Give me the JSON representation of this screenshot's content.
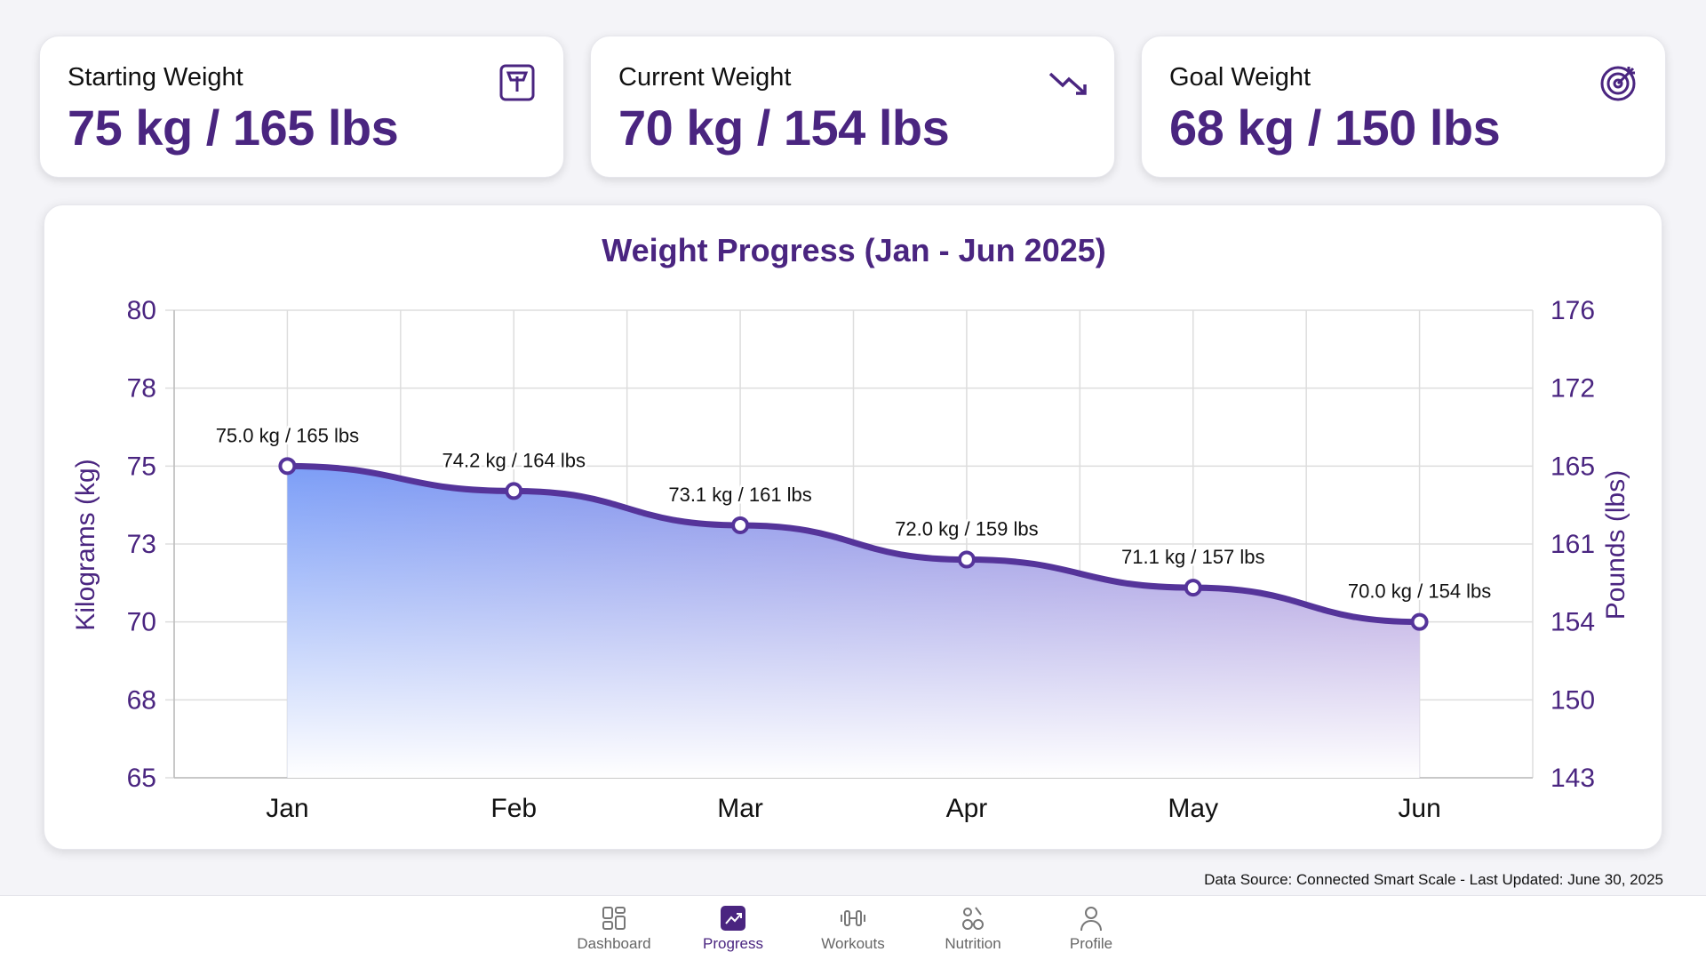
{
  "cards": [
    {
      "label": "Starting Weight",
      "value": "75 kg / 165 lbs",
      "icon": "scale-icon"
    },
    {
      "label": "Current Weight",
      "value": "70 kg / 154 lbs",
      "icon": "trending-down-icon"
    },
    {
      "label": "Goal Weight",
      "value": "68 kg / 150 lbs",
      "icon": "target-icon"
    }
  ],
  "chart_data": {
    "type": "area",
    "title": "Weight Progress (Jan - Jun 2025)",
    "ylabel": "Kilograms (kg)",
    "y2label": "Pounds (lbs)",
    "ylim": [
      65,
      80
    ],
    "y_ticks": [
      "80",
      "78",
      "75",
      "73",
      "70",
      "68",
      "65"
    ],
    "y2_ticks": [
      "176",
      "172",
      "165",
      "161",
      "154",
      "150",
      "143"
    ],
    "categories": [
      "Jan",
      "Feb",
      "Mar",
      "Apr",
      "May",
      "Jun"
    ],
    "values": [
      75.0,
      74.2,
      73.1,
      72.0,
      71.1,
      70.0
    ],
    "data_labels": [
      "75.0 kg / 165 lbs",
      "74.2 kg / 164 lbs",
      "73.1 kg / 161 lbs",
      "72.0 kg / 159 lbs",
      "71.1 kg / 157 lbs",
      "70.0 kg / 154 lbs"
    ],
    "grid": true,
    "colors": {
      "line": "#55349a",
      "fill_start": "#7c9ef7",
      "fill_end": "#9a80d4",
      "axis_text": "#4a2580"
    }
  },
  "footer": "Data Source: Connected Smart Scale - Last Updated: June 30, 2025",
  "nav": [
    {
      "label": "Dashboard",
      "icon": "dashboard-icon",
      "active": false
    },
    {
      "label": "Progress",
      "icon": "progress-icon",
      "active": true
    },
    {
      "label": "Workouts",
      "icon": "dumbbell-icon",
      "active": false
    },
    {
      "label": "Nutrition",
      "icon": "nutrition-icon",
      "active": false
    },
    {
      "label": "Profile",
      "icon": "profile-icon",
      "active": false
    }
  ]
}
